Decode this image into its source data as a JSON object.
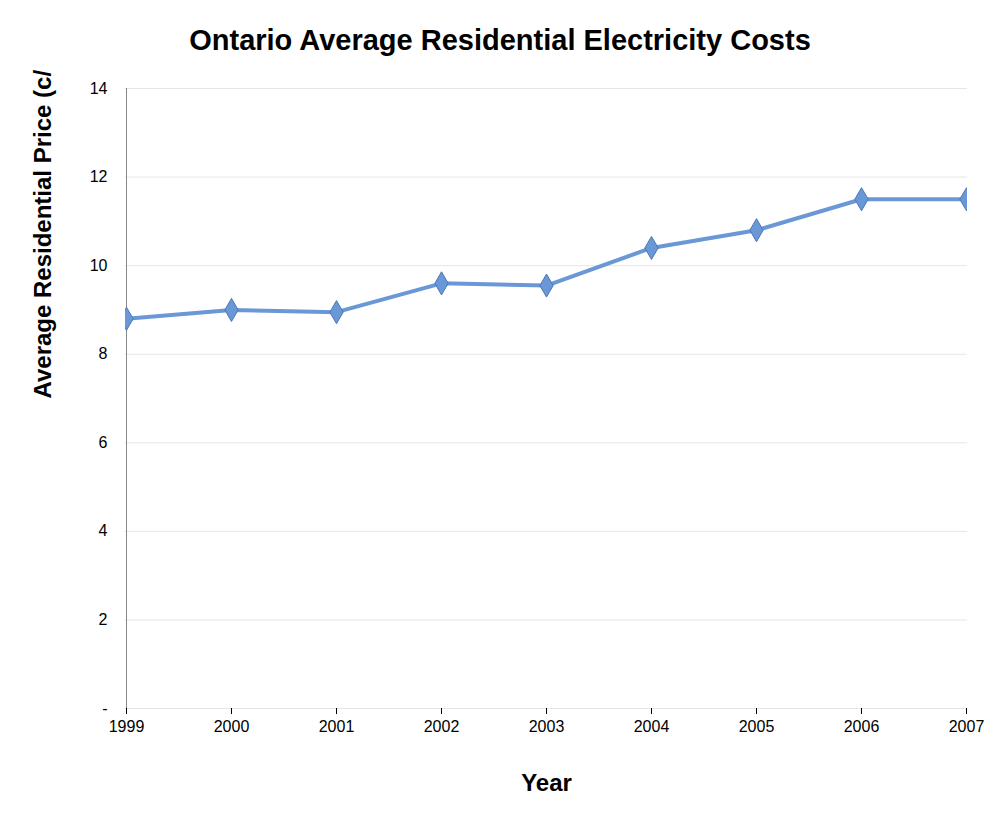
{
  "chart_data": {
    "type": "line",
    "title": "Ontario Average Residential Electricity Costs",
    "x_label": "Year",
    "y_label": "Average Residential Price (c/kWh)",
    "categories": [
      "1999",
      "2000",
      "2001",
      "2002",
      "2003",
      "2004",
      "2005",
      "2006",
      "2007"
    ],
    "values": [
      8.8,
      9.0,
      8.95,
      9.6,
      9.55,
      10.4,
      10.8,
      11.5,
      11.5
    ],
    "color": "#6a98d6",
    "marker": "diamond",
    "ylim": [
      0,
      14
    ],
    "yticks": [
      {
        "value": 0,
        "label": "-"
      },
      2,
      4,
      6,
      8,
      10,
      12,
      14
    ],
    "grid": true
  }
}
